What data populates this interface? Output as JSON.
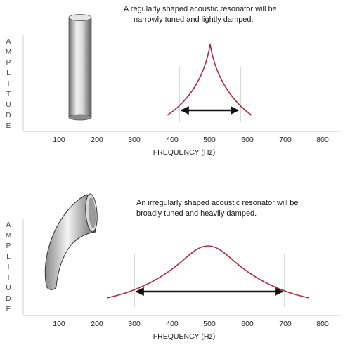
{
  "panels": [
    {
      "caption_lines": [
        "A regularly shaped acoustic resonator will be",
        "narrowly tuned and lightly damped."
      ],
      "y_axis_letters": [
        "A",
        "M",
        "P",
        "L",
        "I",
        "T",
        "U",
        "D",
        "E"
      ],
      "x_ticks": [
        100,
        200,
        300,
        400,
        500,
        600,
        700,
        800
      ],
      "x_axis_title": "FREQUENCY (Hz)",
      "resonator_icon": "cylinder-tube",
      "curve": {
        "peak_hz": 500,
        "shape": "sharp",
        "bandwidth_start_hz": 420,
        "bandwidth_end_hz": 582
      }
    },
    {
      "caption_lines": [
        "An irregularly shaped acoustic resonator will be",
        "broadly tuned and heavily damped."
      ],
      "y_axis_letters": [
        "A",
        "M",
        "P",
        "L",
        "I",
        "T",
        "U",
        "D",
        "E"
      ],
      "x_ticks": [
        100,
        200,
        300,
        400,
        500,
        600,
        700,
        800
      ],
      "x_axis_title": "FREQUENCY (Hz)",
      "resonator_icon": "curved-horn-tube",
      "curve": {
        "peak_hz": 500,
        "shape": "broad",
        "bandwidth_start_hz": 300,
        "bandwidth_end_hz": 700
      }
    }
  ],
  "colors": {
    "curve": "#b8283a",
    "axis": "#cfcfcf",
    "bandwidth_marker": "#b3b3b3",
    "arrow": "#111111"
  }
}
